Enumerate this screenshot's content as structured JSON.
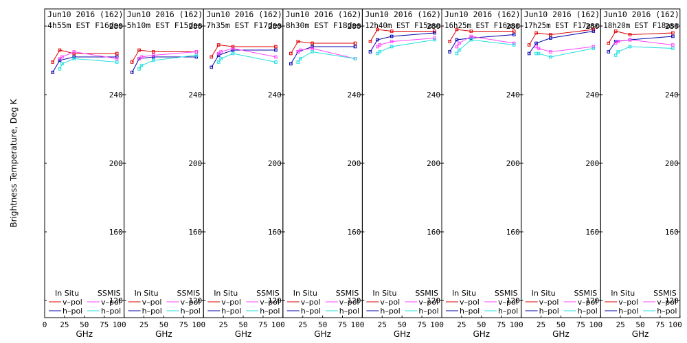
{
  "figure": {
    "ylabel": "Brightness Temperature, Deg K",
    "xlabel": "GHz",
    "yticks": [
      "120",
      "160",
      "200",
      "240",
      "280"
    ],
    "xticks": [
      "0",
      "25",
      "50",
      "75",
      "100"
    ],
    "legend": {
      "in_situ_header": "In Situ",
      "ssmis_header": "SSMIS",
      "v_label": "v–pol",
      "h_label": "h–pol"
    }
  },
  "colors": {
    "insitu_v": "#dd0000",
    "insitu_h": "#0000aa",
    "ssmis_v": "#ff44ff",
    "ssmis_h": "#22dddd"
  },
  "chart_data": [
    {
      "type": "line",
      "title_line1": "Jun10 2016 (162)",
      "title_line2": "4h55m  EST  F16des",
      "x": [
        10,
        19,
        37,
        91
      ],
      "ylim": [
        110,
        290
      ],
      "xlim": [
        0,
        100
      ],
      "series": [
        {
          "name": "In Situ v–pol",
          "x": [
            10,
            19,
            37,
            91
          ],
          "values": [
            259,
            266,
            264,
            264
          ]
        },
        {
          "name": "In Situ h–pol",
          "x": [
            10,
            19,
            37,
            91
          ],
          "values": [
            253,
            260,
            262,
            262
          ]
        },
        {
          "name": "SSMIS v–pol",
          "x": [
            19,
            22,
            37,
            91
          ],
          "values": [
            261,
            262,
            265,
            261
          ]
        },
        {
          "name": "SSMIS h–pol",
          "x": [
            19,
            22,
            37,
            91
          ],
          "values": [
            255,
            258,
            261,
            259
          ]
        }
      ]
    },
    {
      "type": "line",
      "title_line1": "Jun10 2016 (162)",
      "title_line2": "5h10m  EST  F15des",
      "x": [
        10,
        19,
        37,
        91
      ],
      "ylim": [
        110,
        290
      ],
      "xlim": [
        0,
        100
      ],
      "series": [
        {
          "name": "In Situ v–pol",
          "x": [
            10,
            19,
            37,
            91
          ],
          "values": [
            259,
            266,
            265,
            265
          ]
        },
        {
          "name": "In Situ h–pol",
          "x": [
            10,
            19,
            37,
            91
          ],
          "values": [
            253,
            261,
            262,
            262
          ]
        },
        {
          "name": "SSMIS v–pol",
          "x": [
            19,
            22,
            37,
            91
          ],
          "values": [
            261,
            262,
            263,
            265
          ]
        },
        {
          "name": "SSMIS h–pol",
          "x": [
            19,
            22,
            37,
            91
          ],
          "values": [
            255,
            257,
            260,
            263
          ]
        }
      ]
    },
    {
      "type": "line",
      "title_line1": "Jun10 2016 (162)",
      "title_line2": "7h35m  EST  F17des",
      "x": [
        10,
        19,
        37,
        91
      ],
      "ylim": [
        110,
        290
      ],
      "xlim": [
        0,
        100
      ],
      "series": [
        {
          "name": "In Situ v–pol",
          "x": [
            10,
            19,
            37,
            91
          ],
          "values": [
            262,
            269,
            268,
            268
          ]
        },
        {
          "name": "In Situ h–pol",
          "x": [
            10,
            19,
            37,
            91
          ],
          "values": [
            256,
            263,
            266,
            266
          ]
        },
        {
          "name": "SSMIS v–pol",
          "x": [
            19,
            22,
            37,
            91
          ],
          "values": [
            264,
            265,
            267,
            262
          ]
        },
        {
          "name": "SSMIS h–pol",
          "x": [
            19,
            22,
            37,
            91
          ],
          "values": [
            259,
            261,
            264,
            259
          ]
        }
      ]
    },
    {
      "type": "line",
      "title_line1": "Jun10 2016 (162)",
      "title_line2": "8h30m  EST  F18des",
      "x": [
        10,
        19,
        37,
        91
      ],
      "ylim": [
        110,
        290
      ],
      "xlim": [
        0,
        100
      ],
      "series": [
        {
          "name": "In Situ v–pol",
          "x": [
            10,
            19,
            37,
            91
          ],
          "values": [
            264,
            271,
            270,
            270
          ]
        },
        {
          "name": "In Situ h–pol",
          "x": [
            10,
            19,
            37,
            91
          ],
          "values": [
            258,
            265,
            268,
            268
          ]
        },
        {
          "name": "SSMIS v–pol",
          "x": [
            19,
            22,
            37,
            91
          ],
          "values": [
            265,
            266,
            267,
            261
          ]
        },
        {
          "name": "SSMIS h–pol",
          "x": [
            19,
            22,
            37,
            91
          ],
          "values": [
            259,
            261,
            265,
            261
          ]
        }
      ]
    },
    {
      "type": "line",
      "title_line1": "Jun10 2016 (162)",
      "title_line2": "12h40m  EST  F15asc",
      "x": [
        10,
        19,
        37,
        91
      ],
      "ylim": [
        110,
        290
      ],
      "xlim": [
        0,
        100
      ],
      "series": [
        {
          "name": "In Situ v–pol",
          "x": [
            10,
            19,
            37,
            91
          ],
          "values": [
            271,
            278,
            277,
            277
          ]
        },
        {
          "name": "In Situ h–pol",
          "x": [
            10,
            19,
            37,
            91
          ],
          "values": [
            265,
            272,
            274,
            276
          ]
        },
        {
          "name": "SSMIS v–pol",
          "x": [
            19,
            22,
            37,
            91
          ],
          "values": [
            268,
            269,
            271,
            273
          ]
        },
        {
          "name": "SSMIS h–pol",
          "x": [
            19,
            22,
            37,
            91
          ],
          "values": [
            264,
            265,
            268,
            272
          ]
        }
      ]
    },
    {
      "type": "line",
      "title_line1": "Jun10 2016 (162)",
      "title_line2": "16h25m  EST  F16asc",
      "x": [
        10,
        19,
        37,
        91
      ],
      "ylim": [
        110,
        290
      ],
      "xlim": [
        0,
        100
      ],
      "series": [
        {
          "name": "In Situ v–pol",
          "x": [
            10,
            19,
            37,
            91
          ],
          "values": [
            271,
            278,
            277,
            277
          ]
        },
        {
          "name": "In Situ h–pol",
          "x": [
            10,
            19,
            37,
            91
          ],
          "values": [
            265,
            272,
            273,
            275
          ]
        },
        {
          "name": "SSMIS v–pol",
          "x": [
            19,
            22,
            37,
            91
          ],
          "values": [
            268,
            270,
            274,
            270
          ]
        },
        {
          "name": "SSMIS h–pol",
          "x": [
            19,
            22,
            37,
            91
          ],
          "values": [
            264,
            266,
            272,
            269
          ]
        }
      ]
    },
    {
      "type": "line",
      "title_line1": "Jun10 2016 (162)",
      "title_line2": "17h25m  EST  F17asc",
      "x": [
        10,
        19,
        37,
        91
      ],
      "ylim": [
        110,
        290
      ],
      "xlim": [
        0,
        100
      ],
      "series": [
        {
          "name": "In Situ v–pol",
          "x": [
            10,
            19,
            37,
            91
          ],
          "values": [
            269,
            276,
            275,
            278
          ]
        },
        {
          "name": "In Situ h–pol",
          "x": [
            10,
            19,
            37,
            91
          ],
          "values": [
            264,
            270,
            273,
            277
          ]
        },
        {
          "name": "SSMIS v–pol",
          "x": [
            19,
            22,
            37,
            91
          ],
          "values": [
            268,
            267,
            265,
            268
          ]
        },
        {
          "name": "SSMIS h–pol",
          "x": [
            19,
            22,
            37,
            91
          ],
          "values": [
            264,
            264,
            262,
            267
          ]
        }
      ]
    },
    {
      "type": "line",
      "title_line1": "Jun10 2016 (162)",
      "title_line2": "18h20m  EST  F18asc",
      "x": [
        10,
        19,
        37,
        91
      ],
      "ylim": [
        110,
        290
      ],
      "xlim": [
        0,
        100
      ],
      "series": [
        {
          "name": "In Situ v–pol",
          "x": [
            10,
            19,
            37,
            91
          ],
          "values": [
            270,
            277,
            275,
            276
          ]
        },
        {
          "name": "In Situ h–pol",
          "x": [
            10,
            19,
            37,
            91
          ],
          "values": [
            265,
            271,
            272,
            274
          ]
        },
        {
          "name": "SSMIS v–pol",
          "x": [
            19,
            22,
            37,
            91
          ],
          "values": [
            270,
            271,
            272,
            269
          ]
        },
        {
          "name": "SSMIS h–pol",
          "x": [
            19,
            22,
            37,
            91
          ],
          "values": [
            263,
            265,
            268,
            267
          ]
        }
      ]
    }
  ]
}
